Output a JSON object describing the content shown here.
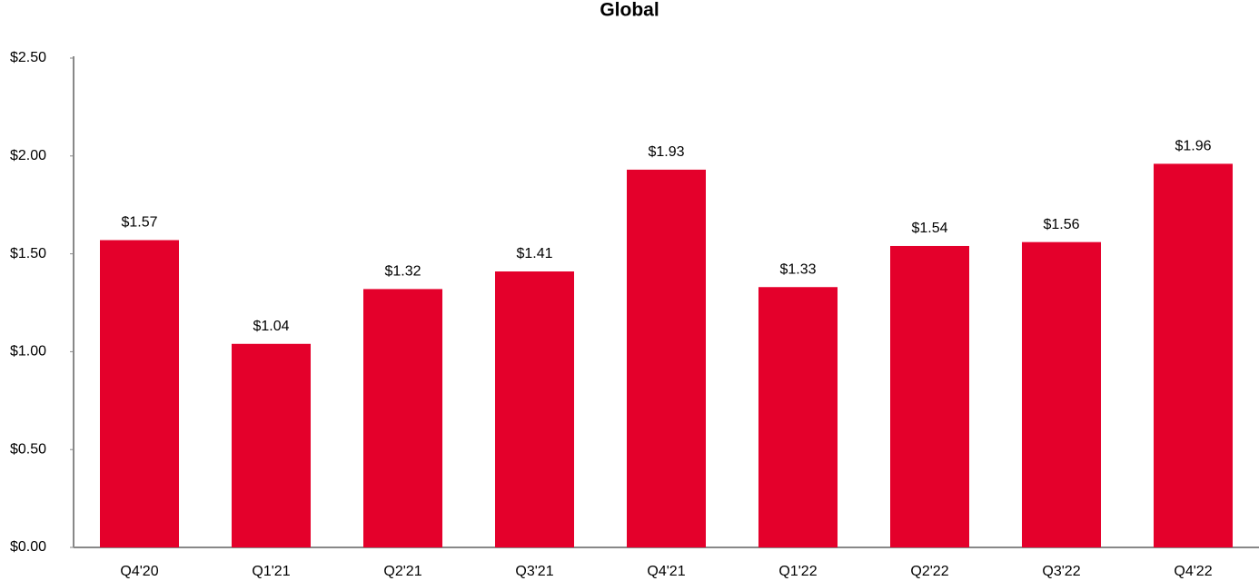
{
  "chart_data": {
    "type": "bar",
    "title": "Global",
    "categories": [
      "Q4'20",
      "Q1'21",
      "Q2'21",
      "Q3'21",
      "Q4'21",
      "Q1'22",
      "Q2'22",
      "Q3'22",
      "Q4'22"
    ],
    "values": [
      1.57,
      1.04,
      1.32,
      1.41,
      1.93,
      1.33,
      1.54,
      1.56,
      1.96
    ],
    "value_labels": [
      "$1.57",
      "$1.04",
      "$1.32",
      "$1.41",
      "$1.93",
      "$1.33",
      "$1.54",
      "$1.56",
      "$1.96"
    ],
    "color": "#e4002b",
    "ylim": [
      0,
      2.5
    ],
    "yticks": [
      {
        "value": 0,
        "label": "$0.00"
      },
      {
        "value": 0.5,
        "label": "$0.50"
      },
      {
        "value": 1,
        "label": "$1.00"
      },
      {
        "value": 1.5,
        "label": "$1.50"
      },
      {
        "value": 2,
        "label": "$2.00"
      },
      {
        "value": 2.5,
        "label": "$2.50"
      }
    ],
    "grid": false
  }
}
